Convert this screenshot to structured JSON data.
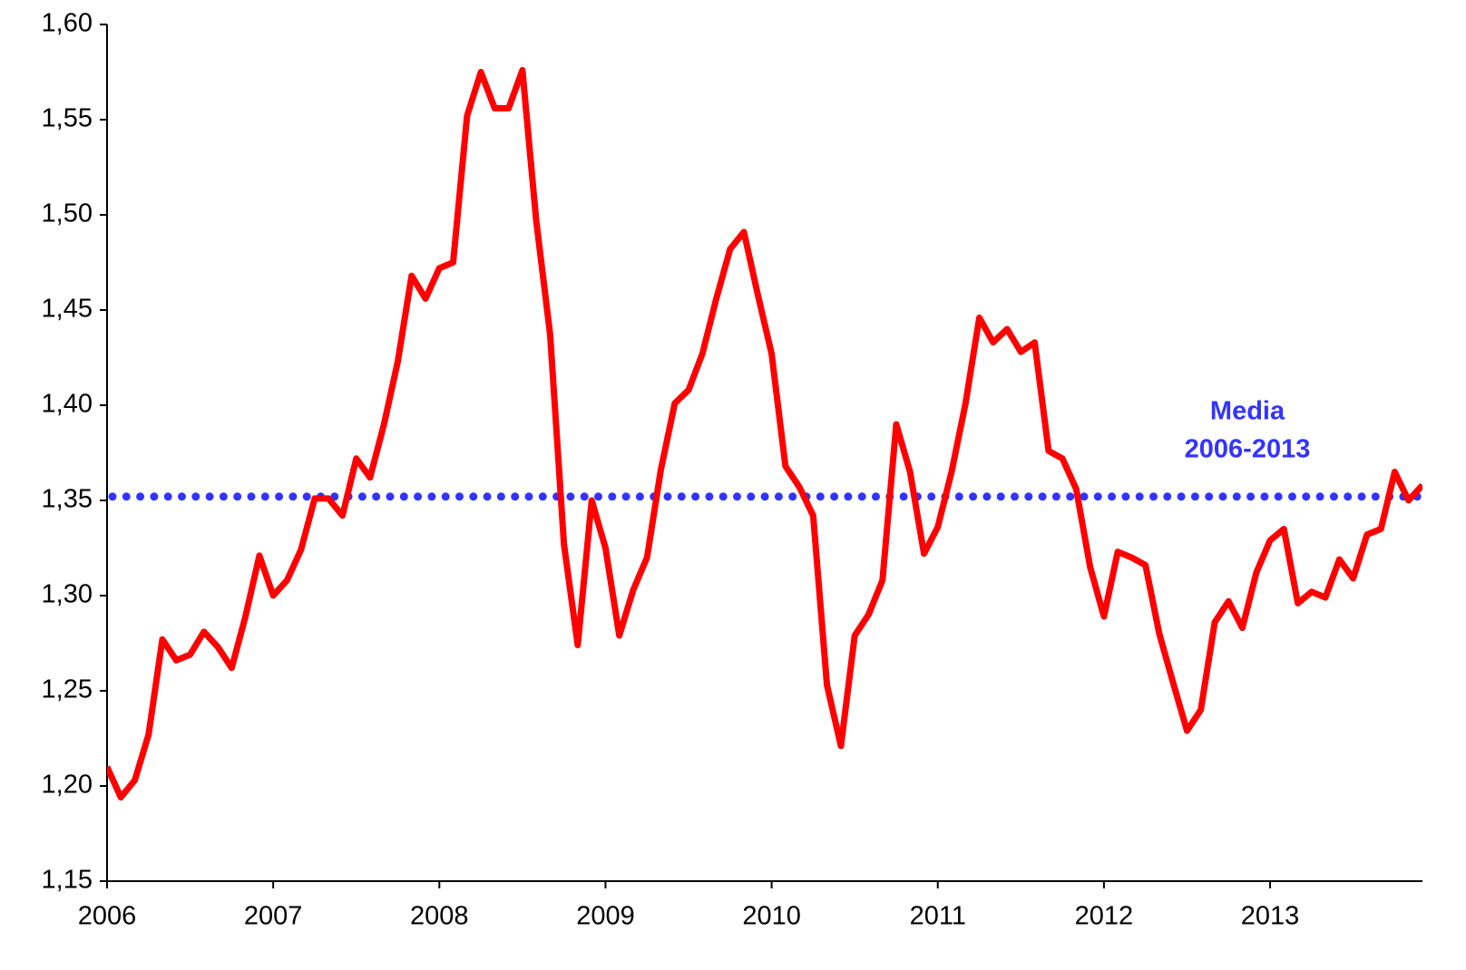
{
  "chart_data": {
    "type": "line",
    "x": [
      2006,
      2006.083,
      2006.167,
      2006.25,
      2006.333,
      2006.417,
      2006.5,
      2006.583,
      2006.667,
      2006.75,
      2006.833,
      2006.917,
      2007,
      2007.083,
      2007.167,
      2007.25,
      2007.333,
      2007.417,
      2007.5,
      2007.583,
      2007.667,
      2007.75,
      2007.833,
      2007.917,
      2008,
      2008.083,
      2008.167,
      2008.25,
      2008.333,
      2008.417,
      2008.5,
      2008.583,
      2008.667,
      2008.75,
      2008.833,
      2008.917,
      2009,
      2009.083,
      2009.167,
      2009.25,
      2009.333,
      2009.417,
      2009.5,
      2009.583,
      2009.667,
      2009.75,
      2009.833,
      2009.917,
      2010,
      2010.083,
      2010.167,
      2010.25,
      2010.333,
      2010.417,
      2010.5,
      2010.583,
      2010.667,
      2010.75,
      2010.833,
      2010.917,
      2011,
      2011.083,
      2011.167,
      2011.25,
      2011.333,
      2011.417,
      2011.5,
      2011.583,
      2011.667,
      2011.75,
      2011.833,
      2011.917,
      2012,
      2012.083,
      2012.167,
      2012.25,
      2012.333,
      2012.417,
      2012.5,
      2012.583,
      2012.667,
      2012.75,
      2012.833,
      2012.917,
      2013,
      2013.083,
      2013.167,
      2013.25,
      2013.333,
      2013.417,
      2013.5,
      2013.583,
      2013.667,
      2013.75,
      2013.833,
      2013.917
    ],
    "series": [
      {
        "color": "#ff0000",
        "values": [
          1.21,
          1.194,
          1.203,
          1.227,
          1.277,
          1.266,
          1.269,
          1.281,
          1.273,
          1.262,
          1.289,
          1.321,
          1.3,
          1.308,
          1.324,
          1.351,
          1.351,
          1.342,
          1.372,
          1.362,
          1.39,
          1.423,
          1.468,
          1.456,
          1.472,
          1.475,
          1.552,
          1.575,
          1.556,
          1.556,
          1.576,
          1.497,
          1.437,
          1.327,
          1.274,
          1.35,
          1.325,
          1.279,
          1.303,
          1.32,
          1.366,
          1.401,
          1.408,
          1.427,
          1.456,
          1.482,
          1.491,
          1.458,
          1.427,
          1.368,
          1.357,
          1.342,
          1.253,
          1.221,
          1.279,
          1.29,
          1.308,
          1.39,
          1.365,
          1.322,
          1.336,
          1.365,
          1.401,
          1.446,
          1.433,
          1.44,
          1.428,
          1.433,
          1.376,
          1.372,
          1.356,
          1.315,
          1.289,
          1.323,
          1.32,
          1.316,
          1.28,
          1.254,
          1.229,
          1.24,
          1.286,
          1.297,
          1.283,
          1.312,
          1.329,
          1.335,
          1.296,
          1.302,
          1.299,
          1.319,
          1.309,
          1.332,
          1.335,
          1.365,
          1.35,
          1.358
        ]
      }
    ],
    "reference_line": {
      "value": 1.352,
      "color": "#3333ff"
    },
    "annotation": [
      "Media",
      "2006-2013"
    ],
    "xlim": [
      2006,
      2013.917
    ],
    "xticks": [
      2006,
      2007,
      2008,
      2009,
      2010,
      2011,
      2012,
      2013
    ],
    "ylim": [
      1.15,
      1.6
    ],
    "yticks": [
      {
        "value": 1.15,
        "label": "1,15"
      },
      {
        "value": 1.2,
        "label": "1,20"
      },
      {
        "value": 1.25,
        "label": "1,25"
      },
      {
        "value": 1.3,
        "label": "1,30"
      },
      {
        "value": 1.35,
        "label": "1,35"
      },
      {
        "value": 1.4,
        "label": "1,40"
      },
      {
        "value": 1.45,
        "label": "1,45"
      },
      {
        "value": 1.5,
        "label": "1,50"
      },
      {
        "value": 1.55,
        "label": "1,55"
      },
      {
        "value": 1.6,
        "label": "1,60"
      }
    ],
    "grid": false
  }
}
